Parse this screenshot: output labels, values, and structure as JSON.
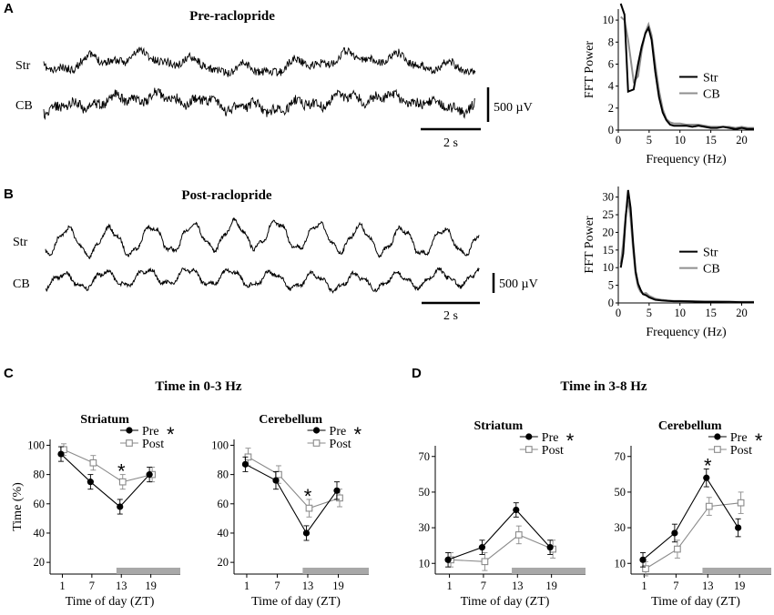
{
  "figure": {
    "panel_a": {
      "letter": "A",
      "title": "Pre-raclopride",
      "trace_labels": [
        "Str",
        "CB"
      ],
      "scale_bar_v": "500 µV",
      "scale_bar_h": "2 s"
    },
    "panel_b": {
      "letter": "B",
      "title": "Post-raclopride",
      "trace_labels": [
        "Str",
        "CB"
      ],
      "scale_bar_v": "500 µV",
      "scale_bar_h": "2 s"
    },
    "panel_c": {
      "letter": "C",
      "title": "Time in 0-3 Hz"
    },
    "panel_d": {
      "letter": "D",
      "title": "Time in 3-8 Hz"
    }
  },
  "colors": {
    "str": "#000000",
    "cb": "#8f8f8f",
    "pre": "#000000",
    "post": "#8a8a8a",
    "night_bar": "#a8a8a8"
  },
  "chart_data": [
    {
      "id": "fft_a",
      "type": "line",
      "xlabel": "Frequency (Hz)",
      "ylabel": "FFT Power",
      "xlim": [
        0,
        22
      ],
      "ylim": [
        0,
        11
      ],
      "xticks": [
        "0",
        "5",
        "10",
        "15",
        "20"
      ],
      "yticks": [
        "0",
        "2",
        "4",
        "6",
        "8",
        "10"
      ],
      "series": [
        {
          "name": "Str",
          "x": [
            0.4,
            1.0,
            1.6,
            2.5,
            3.2,
            3.8,
            4.4,
            4.9,
            5.4,
            6.0,
            6.6,
            7.2,
            7.8,
            8.4,
            9.0,
            10,
            11,
            12,
            13,
            14,
            15,
            16,
            17,
            18,
            19,
            20,
            21,
            22
          ],
          "y": [
            11.5,
            10.5,
            3.5,
            3.7,
            6.0,
            7.6,
            8.8,
            9.3,
            8.2,
            5.3,
            3.0,
            1.6,
            0.9,
            0.5,
            0.4,
            0.4,
            0.4,
            0.3,
            0.4,
            0.3,
            0.2,
            0.2,
            0.3,
            0.2,
            0.1,
            0.2,
            0.1,
            0.1
          ]
        },
        {
          "name": "CB",
          "x": [
            0.4,
            1.0,
            1.6,
            2.5,
            3.2,
            3.8,
            4.4,
            4.9,
            5.4,
            6.0,
            6.6,
            7.2,
            7.8,
            8.4,
            9.0,
            10,
            11,
            12,
            13,
            14,
            15,
            16,
            17,
            18,
            19,
            20,
            21,
            22
          ],
          "y": [
            10.3,
            10.0,
            8.2,
            4.4,
            4.9,
            7.2,
            8.9,
            9.6,
            8.6,
            6.0,
            3.6,
            1.9,
            1.0,
            0.7,
            0.6,
            0.6,
            0.5,
            0.5,
            0.5,
            0.4,
            0.3,
            0.3,
            0.3,
            0.3,
            0.2,
            0.3,
            0.2,
            0.2
          ]
        }
      ]
    },
    {
      "id": "fft_b",
      "type": "line",
      "xlabel": "Frequency (Hz)",
      "ylabel": "FFT Power",
      "xlim": [
        0,
        22
      ],
      "ylim": [
        0,
        33
      ],
      "xticks": [
        "0",
        "5",
        "10",
        "15",
        "20"
      ],
      "yticks": [
        "0",
        "5",
        "10",
        "15",
        "20",
        "25",
        "30"
      ],
      "series": [
        {
          "name": "Str",
          "x": [
            0.4,
            0.8,
            1.2,
            1.6,
            2.0,
            2.4,
            2.8,
            3.2,
            3.6,
            4.0,
            4.5,
            5,
            6,
            7,
            8,
            9,
            10,
            12,
            14,
            16,
            18,
            20,
            22
          ],
          "y": [
            10,
            14,
            24,
            32,
            27,
            17,
            9,
            5.5,
            3.8,
            2.5,
            2.2,
            1.6,
            0.9,
            0.7,
            0.6,
            0.5,
            0.5,
            0.4,
            0.3,
            0.3,
            0.3,
            0.2,
            0.2
          ]
        },
        {
          "name": "CB",
          "x": [
            0.4,
            0.8,
            1.2,
            1.6,
            2.0,
            2.4,
            2.8,
            3.2,
            3.6,
            4.0,
            4.5,
            5,
            6,
            7,
            8,
            9,
            10,
            12,
            14,
            16,
            18,
            20,
            22
          ],
          "y": [
            11,
            17,
            25,
            29,
            24,
            15,
            8,
            4.6,
            3.2,
            2.6,
            2.8,
            2.0,
            1.2,
            0.9,
            0.7,
            0.6,
            0.6,
            0.5,
            0.4,
            0.4,
            0.3,
            0.3,
            0.3
          ]
        }
      ]
    },
    {
      "id": "c_striatum",
      "type": "line",
      "title": "Striatum",
      "xlabel": "Time of day (ZT)",
      "ylabel": "Time (%)",
      "xlim": [
        -1.5,
        25
      ],
      "ylim": [
        12,
        104
      ],
      "x": [
        1,
        7,
        13,
        19
      ],
      "xticks": [
        "1",
        "7",
        "13",
        "19"
      ],
      "yticks": [
        "20",
        "40",
        "60",
        "80",
        "100"
      ],
      "series": [
        {
          "name": "Pre",
          "values": [
            94,
            75,
            58,
            80
          ],
          "err": [
            5,
            5,
            5,
            5
          ]
        },
        {
          "name": "Post",
          "values": [
            97,
            88,
            75,
            80
          ],
          "err": [
            4,
            5,
            5,
            5
          ]
        }
      ],
      "legend_star": "*",
      "annotation": {
        "x": 13,
        "text": "*"
      },
      "night_bar": [
        12,
        25
      ]
    },
    {
      "id": "c_cerebellum",
      "type": "line",
      "title": "Cerebellum",
      "xlabel": "Time of day (ZT)",
      "ylabel": "",
      "xlim": [
        -1.5,
        25
      ],
      "ylim": [
        12,
        104
      ],
      "x": [
        1,
        7,
        13,
        19
      ],
      "xticks": [
        "1",
        "7",
        "13",
        "19"
      ],
      "yticks": [
        "20",
        "40",
        "60",
        "80",
        "100"
      ],
      "series": [
        {
          "name": "Pre",
          "values": [
            87,
            76,
            40,
            69
          ],
          "err": [
            5,
            6,
            5,
            6
          ]
        },
        {
          "name": "Post",
          "values": [
            92,
            80,
            57,
            64
          ],
          "err": [
            6,
            6,
            6,
            6
          ]
        }
      ],
      "legend_star": "*",
      "annotation": {
        "x": 13,
        "text": "*"
      },
      "night_bar": [
        12,
        25
      ]
    },
    {
      "id": "d_striatum",
      "type": "line",
      "title": "Striatum",
      "xlabel": "Time of day (ZT)",
      "ylabel": "",
      "xlim": [
        -1.5,
        25
      ],
      "ylim": [
        4,
        76
      ],
      "x": [
        1,
        7,
        13,
        19
      ],
      "xticks": [
        "1",
        "7",
        "13",
        "19"
      ],
      "yticks": [
        "10",
        "30",
        "50",
        "70"
      ],
      "series": [
        {
          "name": "Pre",
          "values": [
            12,
            19,
            40,
            19
          ],
          "err": [
            4,
            4,
            4,
            4
          ]
        },
        {
          "name": "Post",
          "values": [
            12,
            11,
            26,
            18
          ],
          "err": [
            4,
            5,
            5,
            5
          ]
        }
      ],
      "legend_star": "*",
      "night_bar": [
        12,
        25
      ]
    },
    {
      "id": "d_cerebellum",
      "type": "line",
      "title": "Cerebellum",
      "xlabel": "Time of day (ZT)",
      "ylabel": "",
      "xlim": [
        -1.5,
        25
      ],
      "ylim": [
        4,
        76
      ],
      "x": [
        1,
        7,
        13,
        19
      ],
      "xticks": [
        "1",
        "7",
        "13",
        "19"
      ],
      "yticks": [
        "10",
        "30",
        "50",
        "70"
      ],
      "series": [
        {
          "name": "Pre",
          "values": [
            12,
            27,
            58,
            30
          ],
          "err": [
            4,
            5,
            5,
            5
          ]
        },
        {
          "name": "Post",
          "values": [
            7,
            18,
            42,
            44
          ],
          "err": [
            4,
            5,
            5,
            6
          ]
        }
      ],
      "legend_star": "*",
      "annotation": {
        "x": 13,
        "text": "*"
      },
      "night_bar": [
        12,
        25
      ]
    }
  ]
}
